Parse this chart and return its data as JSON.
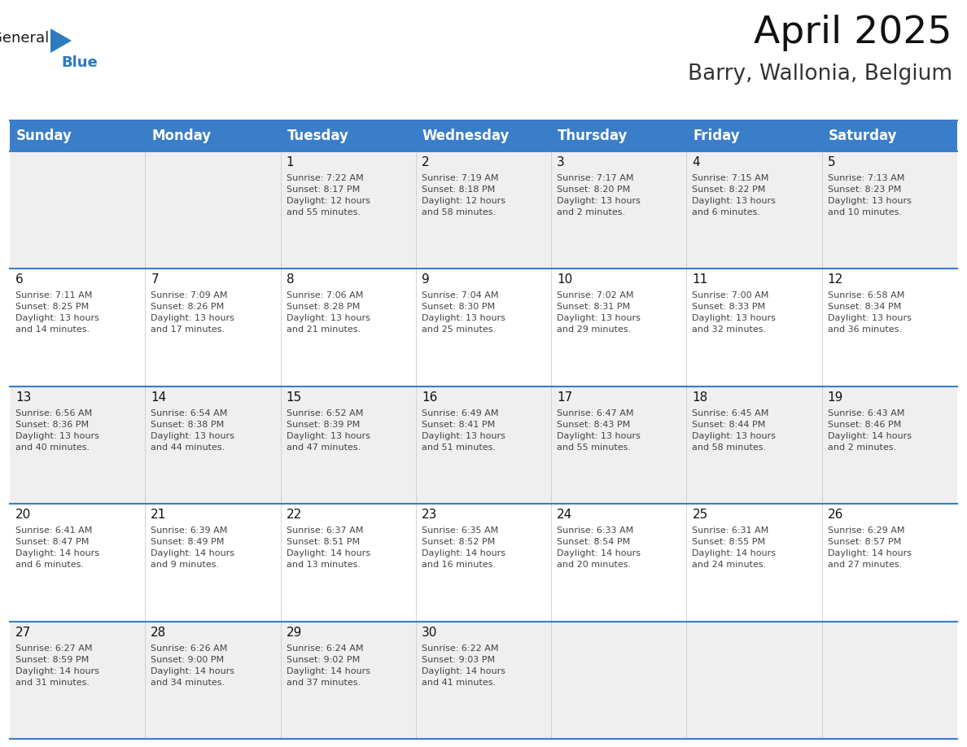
{
  "title": "April 2025",
  "subtitle": "Barry, Wallonia, Belgium",
  "header_color": "#3A7DC9",
  "header_text_color": "#FFFFFF",
  "header_font_size": 12,
  "day_names": [
    "Sunday",
    "Monday",
    "Tuesday",
    "Wednesday",
    "Thursday",
    "Friday",
    "Saturday"
  ],
  "title_font_size": 34,
  "subtitle_font_size": 19,
  "row_alt_color": "#EFEFEF",
  "row_color": "#FFFFFF",
  "cell_text_color": "#444444",
  "day_num_color": "#111111",
  "separator_color": "#3A7DC9",
  "line_color": "#3A7DC9",
  "bg_color": "#FFFFFF",
  "logo_text_color": "#1a1a1a",
  "logo_blue_color": "#2B7BBD",
  "weeks": [
    [
      {
        "day": null,
        "text": ""
      },
      {
        "day": null,
        "text": ""
      },
      {
        "day": 1,
        "text": "Sunrise: 7:22 AM\nSunset: 8:17 PM\nDaylight: 12 hours\nand 55 minutes."
      },
      {
        "day": 2,
        "text": "Sunrise: 7:19 AM\nSunset: 8:18 PM\nDaylight: 12 hours\nand 58 minutes."
      },
      {
        "day": 3,
        "text": "Sunrise: 7:17 AM\nSunset: 8:20 PM\nDaylight: 13 hours\nand 2 minutes."
      },
      {
        "day": 4,
        "text": "Sunrise: 7:15 AM\nSunset: 8:22 PM\nDaylight: 13 hours\nand 6 minutes."
      },
      {
        "day": 5,
        "text": "Sunrise: 7:13 AM\nSunset: 8:23 PM\nDaylight: 13 hours\nand 10 minutes."
      }
    ],
    [
      {
        "day": 6,
        "text": "Sunrise: 7:11 AM\nSunset: 8:25 PM\nDaylight: 13 hours\nand 14 minutes."
      },
      {
        "day": 7,
        "text": "Sunrise: 7:09 AM\nSunset: 8:26 PM\nDaylight: 13 hours\nand 17 minutes."
      },
      {
        "day": 8,
        "text": "Sunrise: 7:06 AM\nSunset: 8:28 PM\nDaylight: 13 hours\nand 21 minutes."
      },
      {
        "day": 9,
        "text": "Sunrise: 7:04 AM\nSunset: 8:30 PM\nDaylight: 13 hours\nand 25 minutes."
      },
      {
        "day": 10,
        "text": "Sunrise: 7:02 AM\nSunset: 8:31 PM\nDaylight: 13 hours\nand 29 minutes."
      },
      {
        "day": 11,
        "text": "Sunrise: 7:00 AM\nSunset: 8:33 PM\nDaylight: 13 hours\nand 32 minutes."
      },
      {
        "day": 12,
        "text": "Sunrise: 6:58 AM\nSunset: 8:34 PM\nDaylight: 13 hours\nand 36 minutes."
      }
    ],
    [
      {
        "day": 13,
        "text": "Sunrise: 6:56 AM\nSunset: 8:36 PM\nDaylight: 13 hours\nand 40 minutes."
      },
      {
        "day": 14,
        "text": "Sunrise: 6:54 AM\nSunset: 8:38 PM\nDaylight: 13 hours\nand 44 minutes."
      },
      {
        "day": 15,
        "text": "Sunrise: 6:52 AM\nSunset: 8:39 PM\nDaylight: 13 hours\nand 47 minutes."
      },
      {
        "day": 16,
        "text": "Sunrise: 6:49 AM\nSunset: 8:41 PM\nDaylight: 13 hours\nand 51 minutes."
      },
      {
        "day": 17,
        "text": "Sunrise: 6:47 AM\nSunset: 8:43 PM\nDaylight: 13 hours\nand 55 minutes."
      },
      {
        "day": 18,
        "text": "Sunrise: 6:45 AM\nSunset: 8:44 PM\nDaylight: 13 hours\nand 58 minutes."
      },
      {
        "day": 19,
        "text": "Sunrise: 6:43 AM\nSunset: 8:46 PM\nDaylight: 14 hours\nand 2 minutes."
      }
    ],
    [
      {
        "day": 20,
        "text": "Sunrise: 6:41 AM\nSunset: 8:47 PM\nDaylight: 14 hours\nand 6 minutes."
      },
      {
        "day": 21,
        "text": "Sunrise: 6:39 AM\nSunset: 8:49 PM\nDaylight: 14 hours\nand 9 minutes."
      },
      {
        "day": 22,
        "text": "Sunrise: 6:37 AM\nSunset: 8:51 PM\nDaylight: 14 hours\nand 13 minutes."
      },
      {
        "day": 23,
        "text": "Sunrise: 6:35 AM\nSunset: 8:52 PM\nDaylight: 14 hours\nand 16 minutes."
      },
      {
        "day": 24,
        "text": "Sunrise: 6:33 AM\nSunset: 8:54 PM\nDaylight: 14 hours\nand 20 minutes."
      },
      {
        "day": 25,
        "text": "Sunrise: 6:31 AM\nSunset: 8:55 PM\nDaylight: 14 hours\nand 24 minutes."
      },
      {
        "day": 26,
        "text": "Sunrise: 6:29 AM\nSunset: 8:57 PM\nDaylight: 14 hours\nand 27 minutes."
      }
    ],
    [
      {
        "day": 27,
        "text": "Sunrise: 6:27 AM\nSunset: 8:59 PM\nDaylight: 14 hours\nand 31 minutes."
      },
      {
        "day": 28,
        "text": "Sunrise: 6:26 AM\nSunset: 9:00 PM\nDaylight: 14 hours\nand 34 minutes."
      },
      {
        "day": 29,
        "text": "Sunrise: 6:24 AM\nSunset: 9:02 PM\nDaylight: 14 hours\nand 37 minutes."
      },
      {
        "day": 30,
        "text": "Sunrise: 6:22 AM\nSunset: 9:03 PM\nDaylight: 14 hours\nand 41 minutes."
      },
      {
        "day": null,
        "text": ""
      },
      {
        "day": null,
        "text": ""
      },
      {
        "day": null,
        "text": ""
      }
    ]
  ]
}
